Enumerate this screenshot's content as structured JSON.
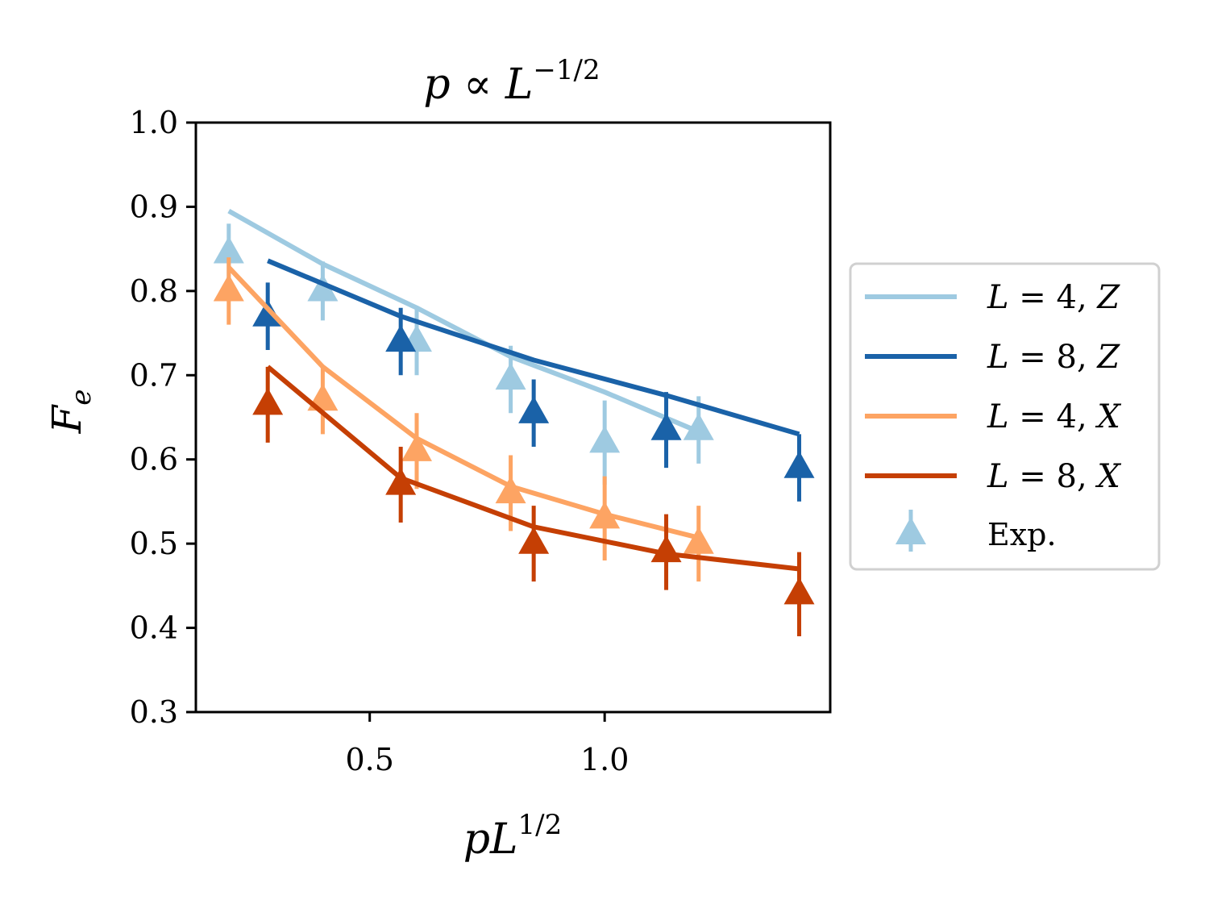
{
  "chart_data": {
    "type": "line",
    "title": {
      "base": "p ∝ L",
      "sup": "−1/2"
    },
    "xlabel": {
      "base": "pL",
      "sup": "1/2"
    },
    "ylabel": {
      "base": "F",
      "sub": "e"
    },
    "xlim": [
      0.13,
      1.48
    ],
    "ylim": [
      0.3,
      1.0
    ],
    "x_ticks": [
      0.5,
      1.0
    ],
    "x_tick_labels": [
      "0.5",
      "1.0"
    ],
    "y_ticks": [
      0.3,
      0.4,
      0.5,
      0.6,
      0.7,
      0.8,
      0.9,
      1.0
    ],
    "y_tick_labels": [
      "0.3",
      "0.4",
      "0.5",
      "0.6",
      "0.7",
      "0.8",
      "0.9",
      "1.0"
    ],
    "grid": false,
    "legend_position": "outside-right",
    "series": [
      {
        "name": "L = 4, Z",
        "L": "4",
        "basis": "Z",
        "color": "#9ecae1",
        "x": [
          0.2,
          0.4,
          0.6,
          0.8,
          1.0,
          1.2
        ],
        "theory": [
          0.895,
          0.832,
          0.78,
          0.722,
          0.68,
          0.633
        ],
        "exp": [
          0.845,
          0.8,
          0.74,
          0.695,
          0.62,
          0.635
        ],
        "err": [
          0.035,
          0.035,
          0.04,
          0.04,
          0.05,
          0.04
        ]
      },
      {
        "name": "L = 8, Z",
        "L": "8",
        "basis": "Z",
        "color": "#1a62a8",
        "x": [
          0.283,
          0.566,
          0.849,
          1.131,
          1.414
        ],
        "theory": [
          0.836,
          0.77,
          0.718,
          0.676,
          0.63
        ],
        "exp": [
          0.77,
          0.74,
          0.655,
          0.635,
          0.59
        ],
        "err": [
          0.04,
          0.04,
          0.04,
          0.045,
          0.04
        ]
      },
      {
        "name": "L = 4, X",
        "L": "4",
        "basis": "X",
        "color": "#fda463",
        "x": [
          0.2,
          0.4,
          0.6,
          0.8,
          1.0,
          1.2
        ],
        "theory": [
          0.828,
          0.71,
          0.625,
          0.568,
          0.535,
          0.507
        ],
        "exp": [
          0.8,
          0.67,
          0.61,
          0.56,
          0.53,
          0.5
        ],
        "err": [
          0.04,
          0.04,
          0.045,
          0.045,
          0.05,
          0.045
        ]
      },
      {
        "name": "L = 8, X",
        "L": "8",
        "basis": "X",
        "color": "#c53f04",
        "x": [
          0.283,
          0.566,
          0.849,
          1.131,
          1.414
        ],
        "theory": [
          0.71,
          0.578,
          0.52,
          0.488,
          0.47
        ],
        "exp": [
          0.665,
          0.57,
          0.5,
          0.49,
          0.44
        ],
        "err": [
          0.045,
          0.045,
          0.045,
          0.045,
          0.05
        ]
      }
    ],
    "legend_exp_label": "Exp."
  }
}
